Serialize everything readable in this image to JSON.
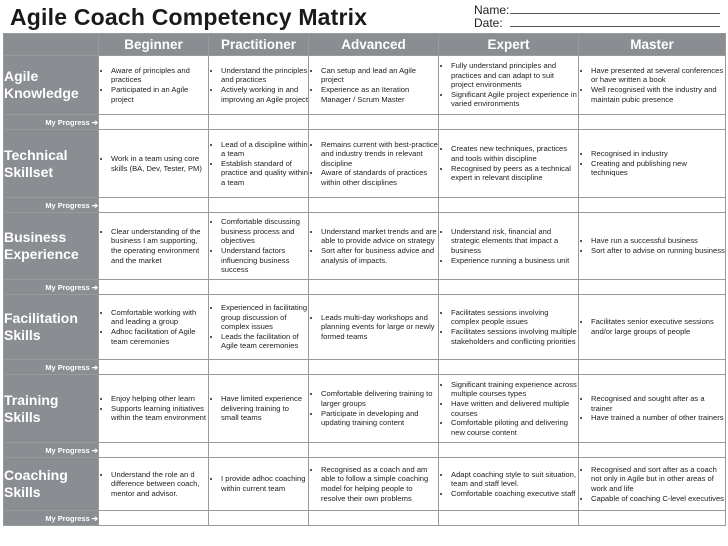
{
  "title": "Agile Coach Competency Matrix",
  "name_label": "Name:",
  "date_label": "Date:",
  "levels": [
    "Beginner",
    "Practitioner",
    "Advanced",
    "Expert",
    "Master"
  ],
  "progress_label": "My Progress ➔",
  "rows": [
    {
      "label": "Agile Knowledge",
      "cells": [
        [
          "Aware of principles and practices",
          "Participated in an Agile project"
        ],
        [
          "Understand the principles and practices",
          "Actively working in and improving an Agile project"
        ],
        [
          "Can setup and lead an Agile project",
          "Experience as an Iteration Manager / Scrum Master"
        ],
        [
          "Fully understand principles and practices and can adapt to suit project environments",
          "Significant Agile project experience in varied environments"
        ],
        [
          "Have presented at several conferences or have written a book",
          "Well recognised with the industry and maintain pubic presence"
        ]
      ]
    },
    {
      "label": "Technical Skillset",
      "cells": [
        [
          "Work in a team using core skills (BA, Dev, Tester, PM)"
        ],
        [
          "Lead of a discipline within a team",
          "Establish standard of practice and quality within a team"
        ],
        [
          "Remains current with best-practice and industry trends in relevant discipline",
          "Aware of standards of practices within other disciplines"
        ],
        [
          "Creates new techniques, practices and tools within discipline",
          "Recognised by peers as a technical expert in relevant discipline"
        ],
        [
          "Recognised in industry",
          "Creating and publishing new techniques"
        ]
      ]
    },
    {
      "label": "Business Experience",
      "cells": [
        [
          "Clear understanding of the business I am supporting, the operating environment and the market"
        ],
        [
          "Comfortable discussing business process and objectives",
          "Understand factors influencing business success"
        ],
        [
          "Understand market trends and are able to provide advice on strategy",
          "Sort after for business advice and analysis of impacts."
        ],
        [
          "Understand risk, financial and strategic elements that impact a business",
          "Experience running a business unit"
        ],
        [
          "Have run a successful business",
          "Sort after to advise on running business"
        ]
      ]
    },
    {
      "label": "Facilitation Skills",
      "cells": [
        [
          "Comfortable working with and leading a group",
          "Adhoc facilitation of Agile team ceremonies"
        ],
        [
          "Experienced in facilitating group discussion of complex issues",
          "Leads the facilitation of Agile team ceremonies"
        ],
        [
          "Leads multi-day workshops and planning events for large or newly formed teams"
        ],
        [
          "Facilitates sessions involving complex people issues",
          "Facilitates sessions involving multiple stakeholders and conflicting priorities"
        ],
        [
          "Facilitates senior executive sessions and/or large groups of people"
        ]
      ]
    },
    {
      "label": "Training Skills",
      "cells": [
        [
          "Enjoy helping other learn",
          "Supports learning initiatives within the team environment"
        ],
        [
          "Have limited experience delivering training to small teams"
        ],
        [
          "Comfortable delivering training to larger groups",
          "Participate in developing and updating training content"
        ],
        [
          "Significant training experience across multiple courses types",
          "Have written and delivered multiple courses",
          "Comfortable piloting and delivering new course content"
        ],
        [
          "Recognised and sought after as a trainer",
          "Have trained a number of other trainers"
        ]
      ]
    },
    {
      "label": "Coaching Skills",
      "cells": [
        [
          "Understand the role an d difference between coach, mentor and advisor."
        ],
        [
          "I provide adhoc coaching within current team"
        ],
        [
          "Recognised as a coach and am able to follow a simple coaching model for helping people to resolve their own problems"
        ],
        [
          "Adapt coaching style to suit situation, team and staff level.",
          "Comfortable coaching executive staff"
        ],
        [
          "Recognised and sort after as a coach not only in Agile but in other areas of work and life",
          "Capable of coaching C-level executives"
        ]
      ]
    }
  ]
}
